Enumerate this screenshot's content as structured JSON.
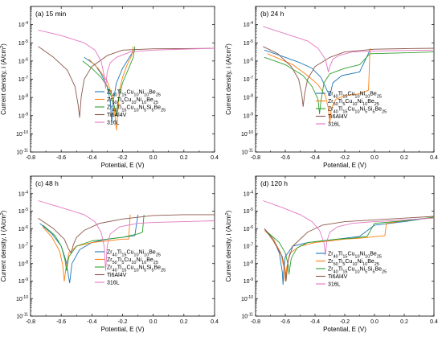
{
  "figure": {
    "xlabel": "Potential, E (V)",
    "ylabel": "Current density, i (A/cm",
    "ylabel_sup": "2",
    "ylabel_end": ")"
  },
  "legend_labels": [
    [
      "Zr",
      "40",
      "Ti",
      "15",
      "Cu",
      "10",
      "Ni",
      "10",
      "Be",
      "25"
    ],
    [
      "Zr",
      "50",
      "Ti",
      "5",
      "Cu",
      "10",
      "Ni",
      "10",
      "Be",
      "25"
    ],
    [
      "Zr",
      "40",
      "Ti",
      "15",
      "Cu",
      "10",
      "Ni",
      "5",
      "Si",
      "5",
      "Be",
      "25"
    ],
    [
      "Ti6Al4V"
    ],
    [
      "316L"
    ]
  ],
  "chart_data": [
    {
      "type": "line",
      "title": "(a) 15 min",
      "xlabel": "Potential, E (V)",
      "ylabel": "Current density, i (A/cm2)",
      "xlim": [
        -0.8,
        0.4
      ],
      "ylim_exp": [
        -11,
        -3
      ],
      "x_ticks": [
        "-0.8",
        "-0.6",
        "-0.4",
        "-0.2",
        "0.0",
        "0.2",
        "0.4"
      ],
      "y_ticks": [
        "-11",
        "-10",
        "-9",
        "-8",
        "-7",
        "-6",
        "-5",
        "-4"
      ],
      "legend_position": "bottom-right",
      "series": [
        {
          "color": "#1f77b4",
          "x": [
            -0.45,
            -0.38,
            -0.34,
            -0.3,
            -0.28,
            -0.27,
            -0.26,
            -0.24,
            -0.2,
            -0.14,
            -0.12
          ],
          "y": [
            -5.8,
            -6.2,
            -6.7,
            -7.4,
            -8.2,
            -9.4,
            -8.2,
            -7.2,
            -6.4,
            -5.6,
            -5.4
          ]
        },
        {
          "color": "#ff7f0e",
          "x": [
            -0.42,
            -0.36,
            -0.3,
            -0.26,
            -0.24,
            -0.23,
            -0.22,
            -0.2,
            -0.17,
            -0.14,
            -0.13
          ],
          "y": [
            -5.9,
            -6.4,
            -7.1,
            -8.1,
            -9.8,
            -8.6,
            -7.6,
            -6.9,
            -6.2,
            -5.7,
            -5.2
          ]
        },
        {
          "color": "#2ca02c",
          "x": [
            -0.46,
            -0.4,
            -0.34,
            -0.3,
            -0.27,
            -0.25,
            -0.24,
            -0.23,
            -0.2,
            -0.16,
            -0.13,
            -0.12
          ],
          "y": [
            -6.0,
            -6.4,
            -6.9,
            -7.4,
            -8.0,
            -8.6,
            -9.0,
            -8.2,
            -7.2,
            -6.4,
            -5.8,
            -5.2
          ]
        },
        {
          "color": "#8c564b",
          "x": [
            -0.75,
            -0.65,
            -0.56,
            -0.51,
            -0.49,
            -0.48,
            -0.47,
            -0.45,
            -0.4,
            -0.3,
            -0.2,
            0.0,
            0.2,
            0.4
          ],
          "y": [
            -5.2,
            -5.8,
            -6.5,
            -7.4,
            -8.4,
            -9.1,
            -8.0,
            -7.0,
            -6.3,
            -5.7,
            -5.4,
            -5.33,
            -5.32,
            -5.3
          ]
        },
        {
          "color": "#e377c2",
          "x": [
            -0.75,
            -0.6,
            -0.45,
            -0.38,
            -0.34,
            -0.32,
            -0.31,
            -0.3,
            -0.28,
            -0.24,
            -0.15,
            0.0,
            0.2,
            0.4
          ],
          "y": [
            -4.3,
            -4.6,
            -5.0,
            -5.4,
            -6.0,
            -6.8,
            -7.5,
            -6.6,
            -6.1,
            -5.8,
            -5.5,
            -5.4,
            -5.35,
            -5.3
          ]
        }
      ]
    },
    {
      "type": "line",
      "title": "(b) 24 h",
      "xlabel": "Potential, E (V)",
      "ylabel": "Current density, i (A/cm2)",
      "xlim": [
        -0.8,
        0.4
      ],
      "ylim_exp": [
        -11,
        -3
      ],
      "x_ticks": [
        "-0.8",
        "-0.6",
        "-0.4",
        "-0.2",
        "0.0",
        "0.2",
        "0.4"
      ],
      "y_ticks": [
        "-11",
        "-10",
        "-9",
        "-8",
        "-7",
        "-6",
        "-5",
        "-4"
      ],
      "legend_position": "bottom-right",
      "series": [
        {
          "color": "#1f77b4",
          "x": [
            -0.74,
            -0.6,
            -0.5,
            -0.42,
            -0.36,
            -0.32,
            -0.3,
            -0.28,
            -0.22,
            -0.1,
            -0.03
          ],
          "y": [
            -5.4,
            -5.8,
            -6.1,
            -6.4,
            -6.9,
            -7.6,
            -7.9,
            -7.2,
            -6.8,
            -6.6,
            -5.4
          ]
        },
        {
          "color": "#ff7f0e",
          "x": [
            -0.72,
            -0.55,
            -0.45,
            -0.38,
            -0.33,
            -0.31,
            -0.3,
            -0.29,
            -0.26,
            -0.2,
            -0.1,
            -0.04,
            -0.03
          ],
          "y": [
            -5.6,
            -6.2,
            -6.8,
            -7.3,
            -7.9,
            -8.6,
            -9.4,
            -8.6,
            -8.1,
            -7.9,
            -7.8,
            -7.6,
            -5.3
          ]
        },
        {
          "color": "#2ca02c",
          "x": [
            -0.74,
            -0.6,
            -0.48,
            -0.42,
            -0.38,
            -0.37,
            -0.36,
            -0.34,
            -0.3,
            -0.2,
            -0.1,
            -0.03,
            0.2,
            0.4
          ],
          "y": [
            -5.8,
            -6.2,
            -6.8,
            -7.4,
            -8.1,
            -8.9,
            -8.2,
            -7.2,
            -6.7,
            -6.4,
            -6.2,
            -5.6,
            -5.55,
            -5.5
          ]
        },
        {
          "color": "#8c564b",
          "x": [
            -0.75,
            -0.65,
            -0.56,
            -0.51,
            -0.49,
            -0.48,
            -0.47,
            -0.45,
            -0.4,
            -0.3,
            -0.2,
            0.0,
            0.2,
            0.4
          ],
          "y": [
            -5.2,
            -5.6,
            -6.3,
            -7.0,
            -7.8,
            -8.5,
            -7.8,
            -7.0,
            -6.3,
            -5.8,
            -5.5,
            -5.35,
            -5.32,
            -5.3
          ]
        },
        {
          "color": "#e377c2",
          "x": [
            -0.75,
            -0.6,
            -0.45,
            -0.38,
            -0.33,
            -0.31,
            -0.3,
            -0.28,
            -0.24,
            -0.15,
            0.0,
            0.2,
            0.4
          ],
          "y": [
            -4.1,
            -4.5,
            -4.9,
            -5.3,
            -5.9,
            -6.6,
            -6.3,
            -5.9,
            -5.7,
            -5.5,
            -5.45,
            -5.42,
            -5.4
          ]
        }
      ]
    },
    {
      "type": "line",
      "title": "(c) 48 h",
      "xlabel": "Potential, E (V)",
      "ylabel": "Current density, i (A/cm2)",
      "xlim": [
        -0.8,
        0.4
      ],
      "ylim_exp": [
        -11,
        -3
      ],
      "x_ticks": [
        "-0.8",
        "-0.6",
        "-0.4",
        "-0.2",
        "0.0",
        "0.2",
        "0.4"
      ],
      "y_ticks": [
        "-11",
        "-10",
        "-9",
        "-8",
        "-7",
        "-6",
        "-5",
        "-4"
      ],
      "legend_position": "bottom-right",
      "series": [
        {
          "color": "#1f77b4",
          "x": [
            -0.74,
            -0.66,
            -0.6,
            -0.57,
            -0.555,
            -0.545,
            -0.53,
            -0.48,
            -0.4,
            -0.3,
            -0.2,
            -0.12,
            -0.1
          ],
          "y": [
            -5.7,
            -6.3,
            -7.0,
            -7.8,
            -8.6,
            -9.1,
            -8.0,
            -7.2,
            -6.8,
            -6.6,
            -6.5,
            -6.4,
            -5.2
          ]
        },
        {
          "color": "#ff7f0e",
          "x": [
            -0.72,
            -0.66,
            -0.61,
            -0.59,
            -0.58,
            -0.57,
            -0.55,
            -0.5,
            -0.4,
            -0.3,
            -0.2,
            -0.16,
            -0.15
          ],
          "y": [
            -5.9,
            -6.5,
            -7.3,
            -8.1,
            -9.0,
            -8.3,
            -7.4,
            -7.0,
            -6.8,
            -6.7,
            -6.6,
            -6.6,
            -5.2
          ]
        },
        {
          "color": "#2ca02c",
          "x": [
            -0.72,
            -0.64,
            -0.6,
            -0.575,
            -0.565,
            -0.55,
            -0.5,
            -0.4,
            -0.3,
            -0.2,
            -0.1,
            -0.07,
            -0.06
          ],
          "y": [
            -5.8,
            -6.4,
            -7.0,
            -7.8,
            -8.4,
            -7.6,
            -7.0,
            -6.7,
            -6.6,
            -6.5,
            -6.3,
            -6.2,
            -5.2
          ]
        },
        {
          "color": "#8c564b",
          "x": [
            -0.75,
            -0.65,
            -0.58,
            -0.55,
            -0.535,
            -0.52,
            -0.5,
            -0.45,
            -0.35,
            -0.2,
            0.0,
            0.2,
            0.4
          ],
          "y": [
            -5.4,
            -6.0,
            -6.6,
            -7.2,
            -7.4,
            -6.9,
            -6.5,
            -6.1,
            -5.7,
            -5.45,
            -5.25,
            -5.2,
            -5.2
          ]
        },
        {
          "color": "#e377c2",
          "x": [
            -0.75,
            -0.6,
            -0.45,
            -0.38,
            -0.34,
            -0.32,
            -0.31,
            -0.3,
            -0.28,
            -0.22,
            -0.1,
            0.0,
            0.2,
            0.4
          ],
          "y": [
            -4.4,
            -4.8,
            -5.2,
            -5.6,
            -6.2,
            -7.0,
            -8.4,
            -7.0,
            -6.3,
            -5.9,
            -5.7,
            -5.65,
            -5.6,
            -5.55
          ]
        }
      ]
    },
    {
      "type": "line",
      "title": "(d) 120 h",
      "xlabel": "Potential, E (V)",
      "ylabel": "Current density, i (A/cm2)",
      "xlim": [
        -0.8,
        0.4
      ],
      "ylim_exp": [
        -11,
        -3
      ],
      "x_ticks": [
        "-0.8",
        "-0.6",
        "-0.4",
        "-0.2",
        "0.0",
        "0.2",
        "0.4"
      ],
      "y_ticks": [
        "-11",
        "-10",
        "-9",
        "-8",
        "-7",
        "-6",
        "-5",
        "-4"
      ],
      "legend_position": "bottom-right",
      "series": [
        {
          "color": "#1f77b4",
          "x": [
            -0.74,
            -0.68,
            -0.64,
            -0.62,
            -0.615,
            -0.61,
            -0.6,
            -0.55,
            -0.45,
            -0.35,
            -0.25,
            -0.15,
            -0.1,
            0.0,
            0.2,
            0.4
          ],
          "y": [
            -6.0,
            -6.6,
            -7.4,
            -8.5,
            -9.2,
            -8.4,
            -7.6,
            -7.0,
            -6.8,
            -6.7,
            -6.6,
            -6.5,
            -6.45,
            -5.8,
            -5.6,
            -5.35
          ]
        },
        {
          "color": "#ff7f0e",
          "x": [
            -0.74,
            -0.68,
            -0.63,
            -0.61,
            -0.6,
            -0.59,
            -0.57,
            -0.5,
            -0.4,
            -0.3,
            -0.2,
            -0.1,
            0.07,
            0.08,
            0.2,
            0.4
          ],
          "y": [
            -6.1,
            -6.6,
            -7.4,
            -8.2,
            -9.0,
            -8.2,
            -7.4,
            -7.0,
            -6.8,
            -6.7,
            -6.6,
            -6.55,
            -6.4,
            -5.7,
            -5.55,
            -5.35
          ]
        },
        {
          "color": "#2ca02c",
          "x": [
            -0.72,
            -0.64,
            -0.6,
            -0.58,
            -0.575,
            -0.56,
            -0.52,
            -0.45,
            -0.35,
            -0.25,
            -0.15,
            -0.05,
            0.0,
            0.2,
            0.4
          ],
          "y": [
            -6.2,
            -6.8,
            -7.4,
            -8.1,
            -8.6,
            -7.7,
            -7.1,
            -6.8,
            -6.7,
            -6.6,
            -6.55,
            -6.45,
            -5.7,
            -5.55,
            -5.35
          ]
        },
        {
          "color": "#8c564b",
          "x": [
            -0.74,
            -0.68,
            -0.62,
            -0.6,
            -0.595,
            -0.58,
            -0.55,
            -0.45,
            -0.35,
            -0.2,
            0.0,
            0.2,
            0.4
          ],
          "y": [
            -6.0,
            -6.7,
            -7.6,
            -8.4,
            -9.0,
            -7.8,
            -7.0,
            -6.2,
            -5.8,
            -5.6,
            -5.5,
            -5.4,
            -5.3
          ]
        },
        {
          "color": "#e377c2",
          "x": [
            -0.75,
            -0.62,
            -0.5,
            -0.42,
            -0.37,
            -0.34,
            -0.33,
            -0.32,
            -0.3,
            -0.25,
            -0.15,
            0.0,
            0.2,
            0.4
          ],
          "y": [
            -4.4,
            -4.8,
            -5.2,
            -5.6,
            -6.1,
            -6.8,
            -7.5,
            -6.7,
            -6.2,
            -5.9,
            -5.7,
            -5.6,
            -5.5,
            -5.4
          ]
        }
      ]
    }
  ]
}
